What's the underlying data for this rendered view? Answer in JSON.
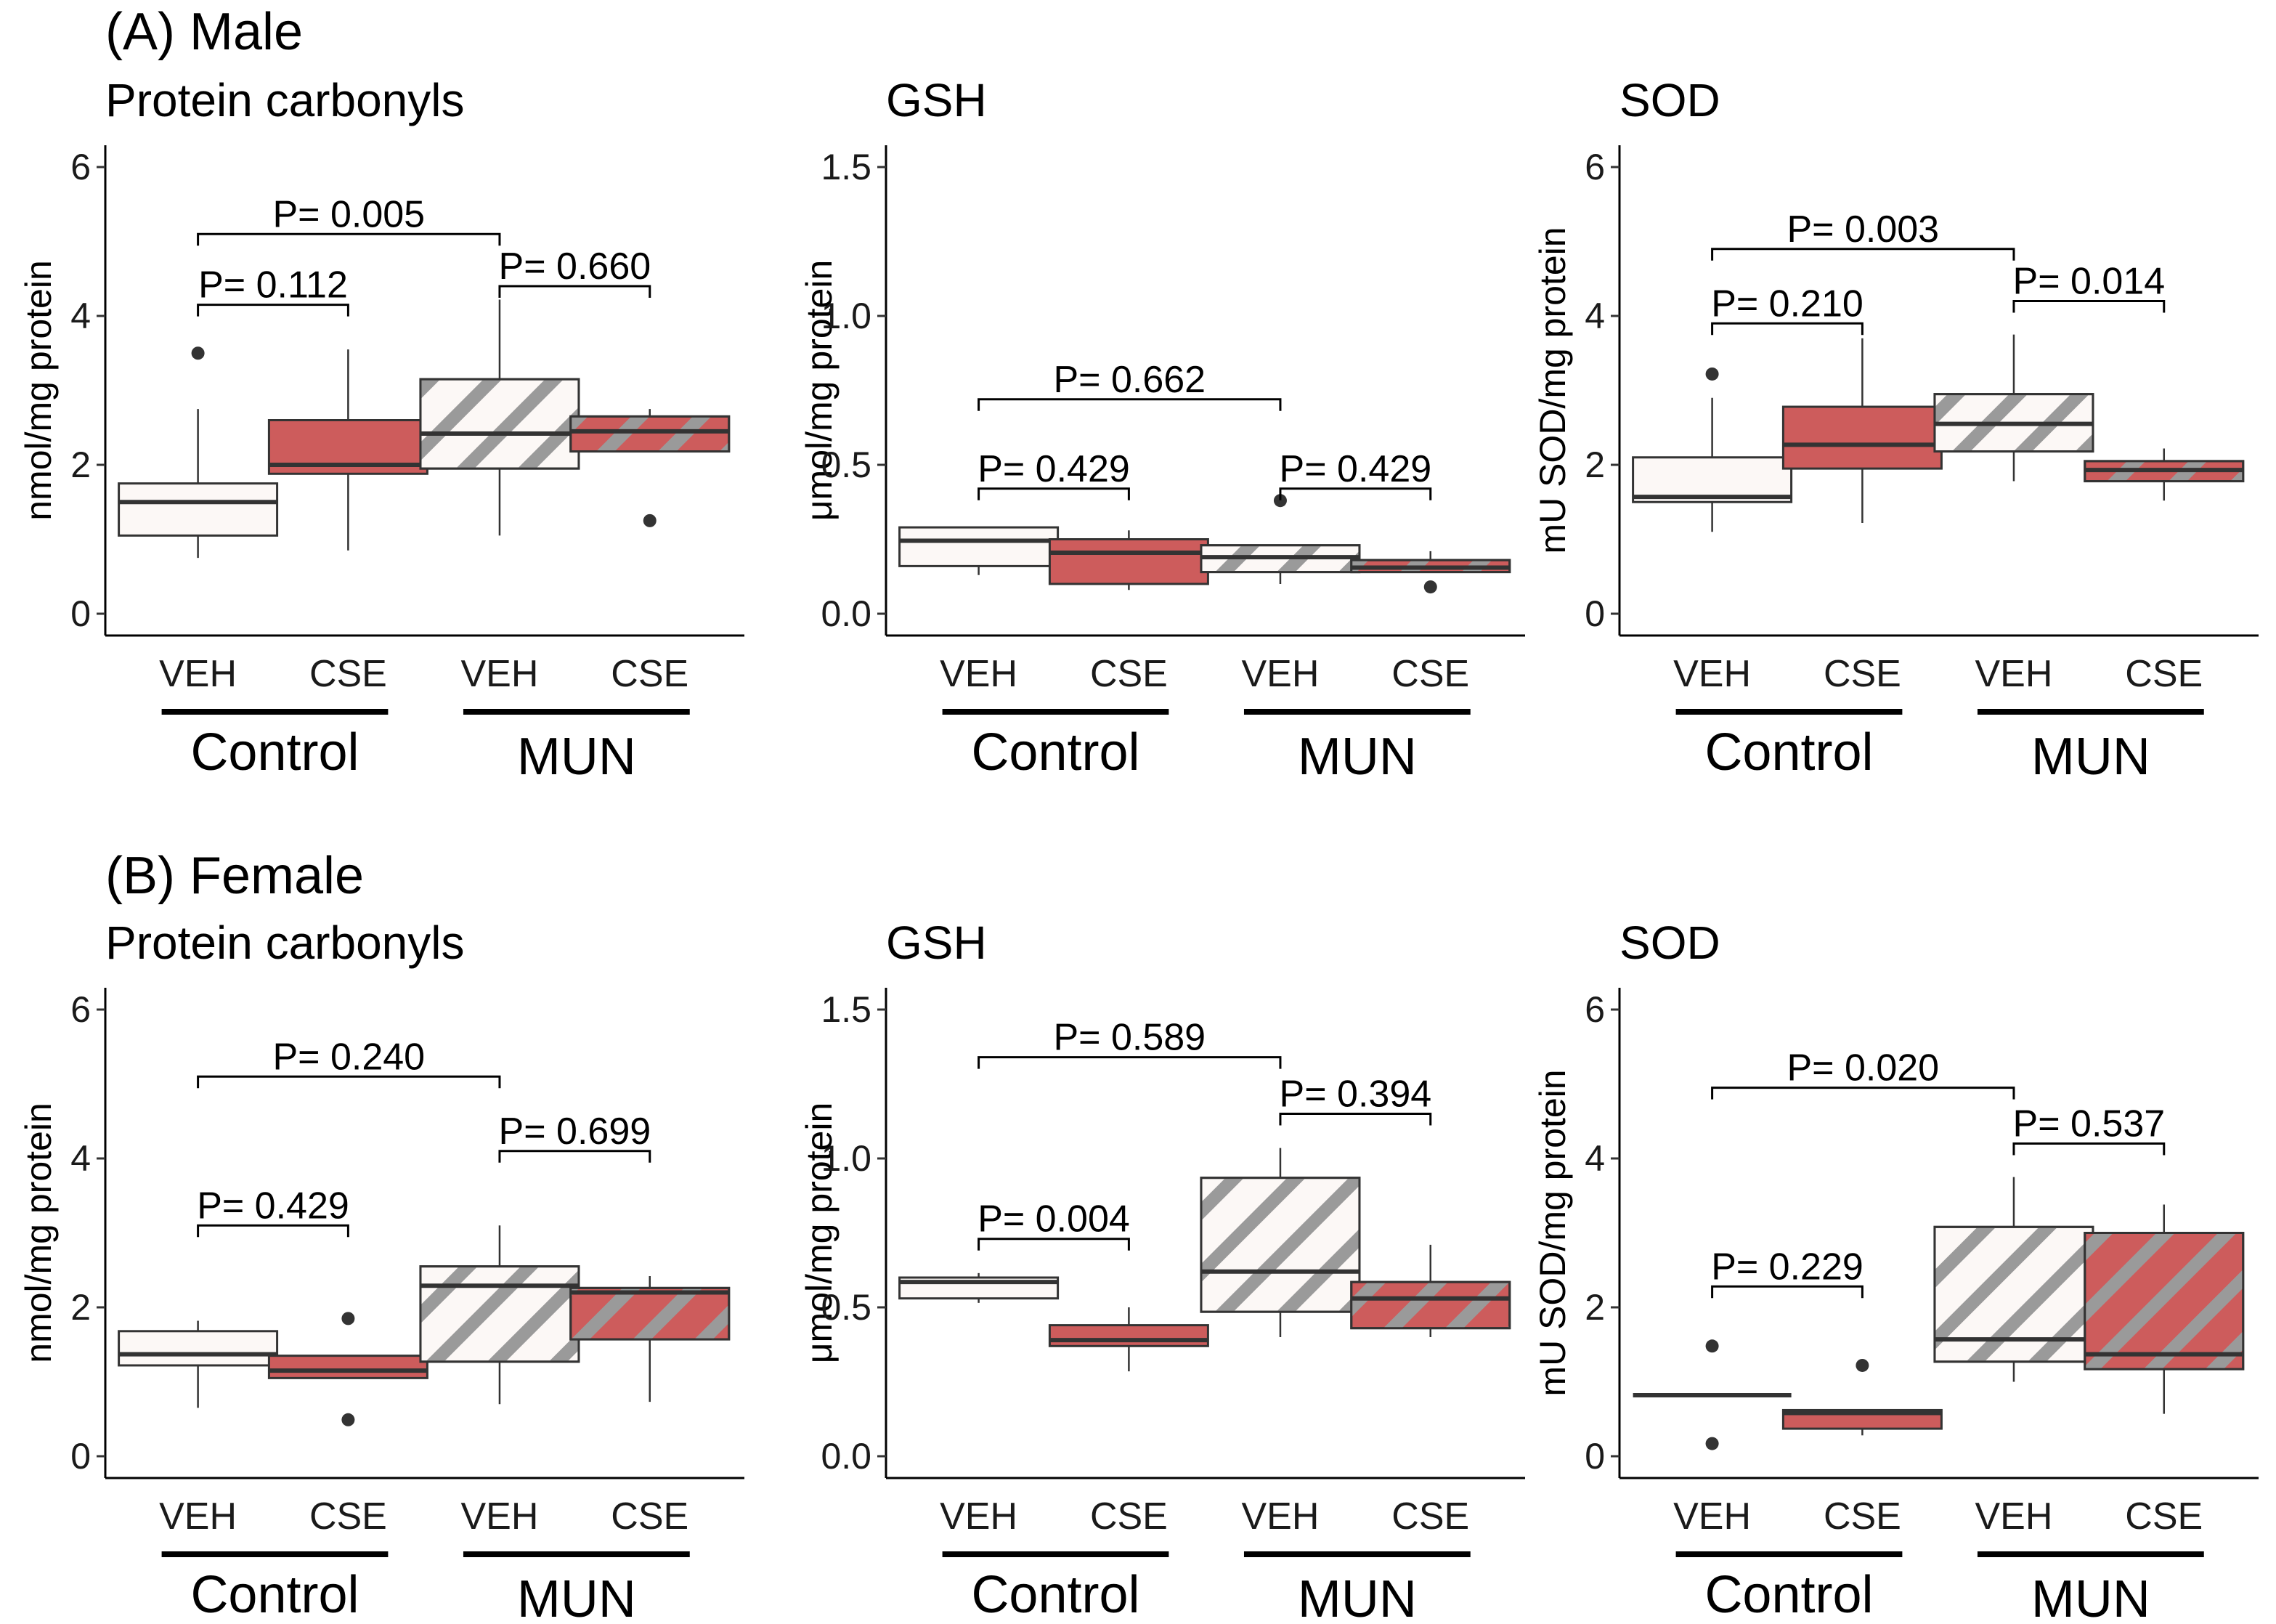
{
  "sections": [
    {
      "title": "(A) Male",
      "panels": [
        {
          "title": "Protein carbonyls",
          "ylabel": "nmol/mg protein",
          "ylim": [
            0,
            6
          ],
          "yticks": [
            "0",
            "2",
            "4",
            "6"
          ],
          "ytick_values": [
            0,
            2,
            4,
            6
          ],
          "boxes": [
            {
              "category": "VEH",
              "group": "Control",
              "fill": "#fcf8f6",
              "hatch": false,
              "q1": 1.05,
              "median": 1.5,
              "q3": 1.75,
              "whisker_low": 0.75,
              "whisker_high": 2.75,
              "outliers": [
                3.5
              ]
            },
            {
              "category": "CSE",
              "group": "Control",
              "fill": "#cd5c5c",
              "hatch": false,
              "q1": 1.88,
              "median": 2.0,
              "q3": 2.6,
              "whisker_low": 0.85,
              "whisker_high": 3.55,
              "outliers": []
            },
            {
              "category": "VEH",
              "group": "MUN",
              "fill": "#fcf8f6",
              "hatch": true,
              "q1": 1.95,
              "median": 2.42,
              "q3": 3.15,
              "whisker_low": 1.05,
              "whisker_high": 4.22,
              "outliers": []
            },
            {
              "category": "CSE",
              "group": "MUN",
              "fill": "#cd5c5c",
              "hatch": true,
              "q1": 2.18,
              "median": 2.45,
              "q3": 2.65,
              "whisker_low": 2.18,
              "whisker_high": 2.75,
              "outliers": [
                1.25
              ]
            }
          ],
          "comparisons": [
            {
              "label": "P= 0.112",
              "from": 0,
              "to": 1,
              "y": 4.15
            },
            {
              "label": "P= 0.660",
              "from": 2,
              "to": 3,
              "y": 4.4
            },
            {
              "label": "P= 0.005",
              "from": 0,
              "to": 2,
              "y": 5.1
            }
          ],
          "groups": [
            "Control",
            "MUN"
          ]
        },
        {
          "title": "GSH",
          "ylabel": "μmol/mg protein",
          "ylim": [
            0,
            1.5
          ],
          "yticks": [
            "0.0",
            "0.5",
            "1.0",
            "1.5"
          ],
          "ytick_values": [
            0,
            0.5,
            1.0,
            1.5
          ],
          "boxes": [
            {
              "category": "VEH",
              "group": "Control",
              "fill": "#fcf8f6",
              "hatch": false,
              "q1": 0.16,
              "median": 0.245,
              "q3": 0.29,
              "whisker_low": 0.13,
              "whisker_high": 0.29,
              "outliers": []
            },
            {
              "category": "CSE",
              "group": "Control",
              "fill": "#cd5c5c",
              "hatch": false,
              "q1": 0.1,
              "median": 0.205,
              "q3": 0.25,
              "whisker_low": 0.08,
              "whisker_high": 0.28,
              "outliers": []
            },
            {
              "category": "VEH",
              "group": "MUN",
              "fill": "#fcf8f6",
              "hatch": true,
              "q1": 0.14,
              "median": 0.19,
              "q3": 0.23,
              "whisker_low": 0.1,
              "whisker_high": 0.23,
              "outliers": [
                0.38
              ]
            },
            {
              "category": "CSE",
              "group": "MUN",
              "fill": "#cd5c5c",
              "hatch": true,
              "q1": 0.14,
              "median": 0.155,
              "q3": 0.18,
              "whisker_low": 0.14,
              "whisker_high": 0.21,
              "outliers": [
                0.09
              ]
            }
          ],
          "comparisons": [
            {
              "label": "P= 0.429",
              "from": 0,
              "to": 1,
              "y": 0.42
            },
            {
              "label": "P= 0.429",
              "from": 2,
              "to": 3,
              "y": 0.42
            },
            {
              "label": "P= 0.662",
              "from": 0,
              "to": 2,
              "y": 0.72
            }
          ],
          "groups": [
            "Control",
            "MUN"
          ]
        },
        {
          "title": "SOD",
          "ylabel": "mU SOD/mg protein",
          "ylim": [
            0,
            6
          ],
          "yticks": [
            "0",
            "2",
            "4",
            "6"
          ],
          "ytick_values": [
            0,
            2,
            4,
            6
          ],
          "boxes": [
            {
              "category": "VEH",
              "group": "Control",
              "fill": "#fcf8f6",
              "hatch": false,
              "q1": 1.5,
              "median": 1.57,
              "q3": 2.1,
              "whisker_low": 1.1,
              "whisker_high": 2.9,
              "outliers": [
                3.22
              ]
            },
            {
              "category": "CSE",
              "group": "Control",
              "fill": "#cd5c5c",
              "hatch": false,
              "q1": 1.95,
              "median": 2.27,
              "q3": 2.78,
              "whisker_low": 1.22,
              "whisker_high": 3.7,
              "outliers": []
            },
            {
              "category": "VEH",
              "group": "MUN",
              "fill": "#fcf8f6",
              "hatch": true,
              "q1": 2.18,
              "median": 2.55,
              "q3": 2.95,
              "whisker_low": 1.78,
              "whisker_high": 3.75,
              "outliers": []
            },
            {
              "category": "CSE",
              "group": "MUN",
              "fill": "#cd5c5c",
              "hatch": true,
              "q1": 1.78,
              "median": 1.93,
              "q3": 2.05,
              "whisker_low": 1.52,
              "whisker_high": 2.22,
              "outliers": []
            }
          ],
          "comparisons": [
            {
              "label": "P= 0.210",
              "from": 0,
              "to": 1,
              "y": 3.9
            },
            {
              "label": "P= 0.014",
              "from": 2,
              "to": 3,
              "y": 4.2
            },
            {
              "label": "P= 0.003",
              "from": 0,
              "to": 2,
              "y": 4.9
            }
          ],
          "groups": [
            "Control",
            "MUN"
          ]
        }
      ]
    },
    {
      "title": "(B) Female",
      "panels": [
        {
          "title": "Protein carbonyls",
          "ylabel": "nmol/mg protein",
          "ylim": [
            0,
            6
          ],
          "yticks": [
            "0",
            "2",
            "4",
            "6"
          ],
          "ytick_values": [
            0,
            2,
            4,
            6
          ],
          "boxes": [
            {
              "category": "VEH",
              "group": "Control",
              "fill": "#fcf8f6",
              "hatch": false,
              "q1": 1.22,
              "median": 1.37,
              "q3": 1.68,
              "whisker_low": 0.65,
              "whisker_high": 1.82,
              "outliers": []
            },
            {
              "category": "CSE",
              "group": "Control",
              "fill": "#cd5c5c",
              "hatch": false,
              "q1": 1.05,
              "median": 1.15,
              "q3": 1.35,
              "whisker_low": 1.05,
              "whisker_high": 1.35,
              "outliers": [
                1.85,
                0.49
              ]
            },
            {
              "category": "VEH",
              "group": "MUN",
              "fill": "#fcf8f6",
              "hatch": true,
              "q1": 1.27,
              "median": 2.29,
              "q3": 2.55,
              "whisker_low": 0.7,
              "whisker_high": 3.1,
              "outliers": []
            },
            {
              "category": "CSE",
              "group": "MUN",
              "fill": "#cd5c5c",
              "hatch": true,
              "q1": 1.57,
              "median": 2.2,
              "q3": 2.26,
              "whisker_low": 0.73,
              "whisker_high": 2.42,
              "outliers": []
            }
          ],
          "comparisons": [
            {
              "label": "P= 0.429",
              "from": 0,
              "to": 1,
              "y": 3.1
            },
            {
              "label": "P= 0.699",
              "from": 2,
              "to": 3,
              "y": 4.1
            },
            {
              "label": "P= 0.240",
              "from": 0,
              "to": 2,
              "y": 5.1
            }
          ],
          "groups": [
            "Control",
            "MUN"
          ]
        },
        {
          "title": "GSH",
          "ylabel": "μmol/mg protein",
          "ylim": [
            0,
            1.5
          ],
          "yticks": [
            "0.0",
            "0.5",
            "1.0",
            "1.5"
          ],
          "ytick_values": [
            0,
            0.5,
            1.0,
            1.5
          ],
          "boxes": [
            {
              "category": "VEH",
              "group": "Control",
              "fill": "#fcf8f6",
              "hatch": false,
              "q1": 0.53,
              "median": 0.585,
              "q3": 0.6,
              "whisker_low": 0.515,
              "whisker_high": 0.615,
              "outliers": []
            },
            {
              "category": "CSE",
              "group": "Control",
              "fill": "#cd5c5c",
              "hatch": false,
              "q1": 0.37,
              "median": 0.39,
              "q3": 0.44,
              "whisker_low": 0.285,
              "whisker_high": 0.5,
              "outliers": []
            },
            {
              "category": "VEH",
              "group": "MUN",
              "fill": "#fcf8f6",
              "hatch": true,
              "q1": 0.485,
              "median": 0.62,
              "q3": 0.935,
              "whisker_low": 0.4,
              "whisker_high": 1.035,
              "outliers": []
            },
            {
              "category": "CSE",
              "group": "MUN",
              "fill": "#cd5c5c",
              "hatch": true,
              "q1": 0.43,
              "median": 0.53,
              "q3": 0.585,
              "whisker_low": 0.4,
              "whisker_high": 0.71,
              "outliers": []
            }
          ],
          "comparisons": [
            {
              "label": "P= 0.004",
              "from": 0,
              "to": 1,
              "y": 0.73
            },
            {
              "label": "P= 0.394",
              "from": 2,
              "to": 3,
              "y": 1.15
            },
            {
              "label": "P= 0.589",
              "from": 0,
              "to": 2,
              "y": 1.34
            }
          ],
          "groups": [
            "Control",
            "MUN"
          ]
        },
        {
          "title": "SOD",
          "ylabel": "mU SOD/mg protein",
          "ylim": [
            0,
            6
          ],
          "yticks": [
            "0",
            "2",
            "4",
            "6"
          ],
          "ytick_values": [
            0,
            2,
            4,
            6
          ],
          "boxes": [
            {
              "category": "VEH",
              "group": "Control",
              "fill": "#fcf8f6",
              "hatch": false,
              "q1": 0.82,
              "median": 0.82,
              "q3": 0.82,
              "whisker_low": 0.82,
              "whisker_high": 0.82,
              "outliers": [
                1.48,
                0.17
              ]
            },
            {
              "category": "CSE",
              "group": "Control",
              "fill": "#cd5c5c",
              "hatch": false,
              "q1": 0.37,
              "median": 0.58,
              "q3": 0.62,
              "whisker_low": 0.28,
              "whisker_high": 0.62,
              "outliers": [
                1.22
              ]
            },
            {
              "category": "VEH",
              "group": "MUN",
              "fill": "#fcf8f6",
              "hatch": true,
              "q1": 1.27,
              "median": 1.57,
              "q3": 3.08,
              "whisker_low": 1.0,
              "whisker_high": 3.75,
              "outliers": []
            },
            {
              "category": "CSE",
              "group": "MUN",
              "fill": "#cd5c5c",
              "hatch": true,
              "q1": 1.17,
              "median": 1.37,
              "q3": 3.0,
              "whisker_low": 0.57,
              "whisker_high": 3.38,
              "outliers": []
            }
          ],
          "comparisons": [
            {
              "label": "P= 0.229",
              "from": 0,
              "to": 1,
              "y": 2.28
            },
            {
              "label": "P= 0.537",
              "from": 2,
              "to": 3,
              "y": 4.2
            },
            {
              "label": "P= 0.020",
              "from": 0,
              "to": 2,
              "y": 4.95
            }
          ],
          "groups": [
            "Control",
            "MUN"
          ]
        }
      ]
    }
  ],
  "chart_data": [
    {
      "type": "box",
      "title": "(A) Male — Protein carbonyls",
      "ylabel": "nmol/mg protein",
      "ylim": [
        0,
        6
      ],
      "categories": [
        "Control VEH",
        "Control CSE",
        "MUN VEH",
        "MUN CSE"
      ],
      "medians": [
        1.5,
        2.0,
        2.42,
        2.45
      ],
      "q1": [
        1.05,
        1.88,
        1.95,
        2.18
      ],
      "q3": [
        1.75,
        2.6,
        3.15,
        2.65
      ],
      "p_values": [
        "P= 0.112",
        "P= 0.660",
        "P= 0.005"
      ]
    },
    {
      "type": "box",
      "title": "(A) Male — GSH",
      "ylabel": "μmol/mg protein",
      "ylim": [
        0,
        1.5
      ],
      "categories": [
        "Control VEH",
        "Control CSE",
        "MUN VEH",
        "MUN CSE"
      ],
      "medians": [
        0.245,
        0.205,
        0.19,
        0.155
      ],
      "q1": [
        0.16,
        0.1,
        0.14,
        0.14
      ],
      "q3": [
        0.29,
        0.25,
        0.23,
        0.18
      ],
      "p_values": [
        "P= 0.429",
        "P= 0.429",
        "P= 0.662"
      ]
    },
    {
      "type": "box",
      "title": "(A) Male — SOD",
      "ylabel": "mU SOD/mg protein",
      "ylim": [
        0,
        6
      ],
      "categories": [
        "Control VEH",
        "Control CSE",
        "MUN VEH",
        "MUN CSE"
      ],
      "medians": [
        1.57,
        2.27,
        2.55,
        1.93
      ],
      "q1": [
        1.5,
        1.95,
        2.18,
        1.78
      ],
      "q3": [
        2.1,
        2.78,
        2.95,
        2.05
      ],
      "p_values": [
        "P= 0.210",
        "P= 0.014",
        "P= 0.003"
      ]
    },
    {
      "type": "box",
      "title": "(B) Female — Protein carbonyls",
      "ylabel": "nmol/mg protein",
      "ylim": [
        0,
        6
      ],
      "categories": [
        "Control VEH",
        "Control CSE",
        "MUN VEH",
        "MUN CSE"
      ],
      "medians": [
        1.37,
        1.15,
        2.29,
        2.2
      ],
      "q1": [
        1.22,
        1.05,
        1.27,
        1.57
      ],
      "q3": [
        1.68,
        1.35,
        2.55,
        2.26
      ],
      "p_values": [
        "P= 0.429",
        "P= 0.699",
        "P= 0.240"
      ]
    },
    {
      "type": "box",
      "title": "(B) Female — GSH",
      "ylabel": "μmol/mg protein",
      "ylim": [
        0,
        1.5
      ],
      "categories": [
        "Control VEH",
        "Control CSE",
        "MUN VEH",
        "MUN CSE"
      ],
      "medians": [
        0.585,
        0.39,
        0.62,
        0.53
      ],
      "q1": [
        0.53,
        0.37,
        0.485,
        0.43
      ],
      "q3": [
        0.6,
        0.44,
        0.935,
        0.585
      ],
      "p_values": [
        "P= 0.004",
        "P= 0.394",
        "P= 0.589"
      ]
    },
    {
      "type": "box",
      "title": "(B) Female — SOD",
      "ylabel": "mU SOD/mg protein",
      "ylim": [
        0,
        6
      ],
      "categories": [
        "Control VEH",
        "Control CSE",
        "MUN VEH",
        "MUN CSE"
      ],
      "medians": [
        0.82,
        0.58,
        1.57,
        1.37
      ],
      "q1": [
        0.82,
        0.37,
        1.27,
        1.17
      ],
      "q3": [
        0.82,
        0.62,
        3.08,
        3.0
      ],
      "p_values": [
        "P= 0.229",
        "P= 0.537",
        "P= 0.020"
      ]
    }
  ]
}
